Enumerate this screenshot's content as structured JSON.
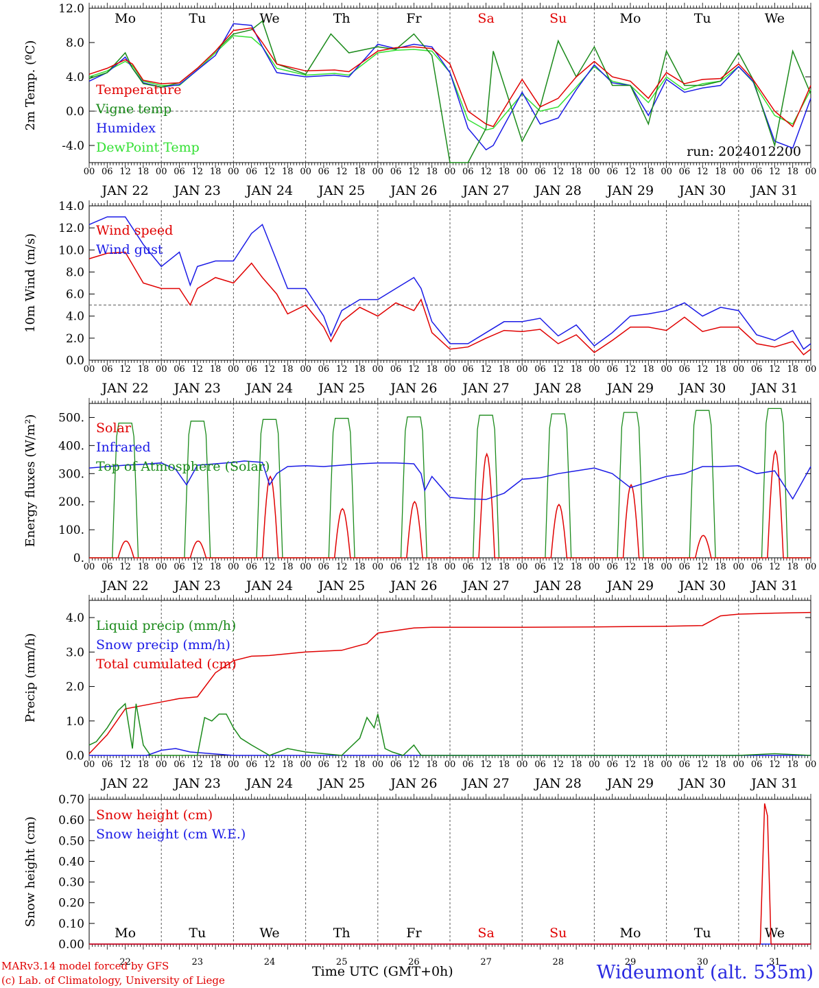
{
  "site_title": "Wideumont (alt. 535m)",
  "credits": [
    "MARv3.14 model forced by GFS",
    "(c) Lab. of Climatology, University of Liege"
  ],
  "colors": {
    "red": "#e00000",
    "green": "#1a8a1a",
    "blue": "#1a1ae6",
    "lightgreen": "#33e033",
    "black": "#000000"
  },
  "chart_data": [
    {
      "type": "line",
      "ylabel": "2m Temp. (ºC)",
      "ylim": [
        -6,
        12
      ],
      "yticks": [
        -4,
        0,
        4,
        8,
        12
      ],
      "ytick_labels": [
        "-4.0",
        "0.0",
        "4.0",
        "8.0",
        "12.0"
      ],
      "ref_line": 0,
      "annotation": "run: 2024012200",
      "day_names": [
        "Mo",
        "Tu",
        "We",
        "Th",
        "Fr",
        "Sa",
        "Su",
        "Mo",
        "Tu",
        "We"
      ],
      "weekend_days": [
        "Sa",
        "Su"
      ],
      "x_hour_labels": [
        "00",
        "06",
        "12",
        "18"
      ],
      "date_labels": [
        "JAN 22",
        "JAN 23",
        "JAN 24",
        "JAN 25",
        "JAN 26",
        "JAN 27",
        "JAN 28",
        "JAN 29",
        "JAN 30",
        "JAN 31"
      ],
      "xlim_days": [
        0,
        10
      ],
      "series": [
        {
          "name": "Temperature",
          "color": "#e00000",
          "x": [
            0,
            0.25,
            0.5,
            0.6,
            0.75,
            1,
            1.25,
            1.5,
            1.75,
            2,
            2.25,
            2.4,
            2.6,
            3,
            3.4,
            3.6,
            4,
            4.25,
            4.5,
            4.75,
            5,
            5.25,
            5.5,
            5.6,
            6,
            6.25,
            6.5,
            6.75,
            7,
            7.25,
            7.5,
            7.75,
            8,
            8.25,
            8.5,
            8.75,
            9,
            9.2,
            9.5,
            9.75,
            10
          ],
          "y": [
            4.3,
            5,
            6,
            5.5,
            3.6,
            3.2,
            3.3,
            5,
            7,
            9.4,
            9.7,
            8,
            5.5,
            4.7,
            4.8,
            4.6,
            7,
            7.4,
            7.5,
            7.3,
            5.5,
            0,
            -1.5,
            -1.8,
            3.7,
            0.5,
            1.5,
            4,
            5.8,
            4,
            3.5,
            1.5,
            4.5,
            3.2,
            3.7,
            3.8,
            5.5,
            3.7,
            0,
            -1.8,
            3
          ]
        },
        {
          "name": "Vigne temp",
          "color": "#1a8a1a",
          "x": [
            0,
            0.25,
            0.5,
            0.6,
            0.75,
            1,
            1.25,
            1.5,
            1.75,
            2,
            2.25,
            2.4,
            2.6,
            3,
            3.35,
            3.6,
            4,
            4.25,
            4.5,
            4.75,
            5,
            5.25,
            5.5,
            5.6,
            6,
            6.25,
            6.5,
            6.75,
            7,
            7.25,
            7.5,
            7.75,
            8,
            8.25,
            8.5,
            8.75,
            9,
            9.2,
            9.5,
            9.75,
            10
          ],
          "y": [
            3.8,
            4.5,
            6.8,
            5,
            3.2,
            2.8,
            3.3,
            5,
            7,
            9,
            9.5,
            10.5,
            5.5,
            4.3,
            9,
            6.8,
            7.5,
            7.2,
            9,
            6.5,
            -6,
            -6,
            -2,
            7,
            -3.5,
            0.5,
            8.2,
            4,
            7.5,
            3,
            3,
            -1.5,
            7,
            3,
            3,
            3.5,
            6.8,
            3.7,
            -4,
            7,
            2
          ]
        },
        {
          "name": "Humidex",
          "color": "#1a1ae6",
          "x": [
            0,
            0.25,
            0.5,
            0.6,
            0.75,
            1,
            1.25,
            1.5,
            1.75,
            2,
            2.25,
            2.4,
            2.6,
            3,
            3.4,
            3.6,
            4,
            4.25,
            4.5,
            4.75,
            5,
            5.25,
            5.5,
            5.6,
            6,
            6.25,
            6.5,
            6.75,
            7,
            7.25,
            7.5,
            7.75,
            8,
            8.25,
            8.5,
            8.75,
            9,
            9.2,
            9.5,
            9.75,
            10
          ],
          "y": [
            3.5,
            4.5,
            6.3,
            5,
            3.3,
            2.8,
            3.1,
            4.8,
            6.5,
            10.2,
            10,
            7.5,
            4.5,
            4,
            4.2,
            4,
            7.8,
            7.3,
            7.8,
            7.5,
            4.5,
            -2,
            -4.5,
            -4,
            2.2,
            -1.5,
            -0.8,
            2.5,
            5.4,
            3.3,
            3,
            -0.5,
            3.7,
            2.2,
            2.7,
            3,
            5.2,
            3.5,
            -3.5,
            -4.3,
            1.5
          ]
        },
        {
          "name": "DewPoint Temp",
          "color": "#33e033",
          "x": [
            0,
            0.25,
            0.5,
            0.6,
            0.75,
            1,
            1.25,
            1.5,
            1.75,
            2,
            2.25,
            2.4,
            2.6,
            3,
            3.4,
            3.6,
            4,
            4.25,
            4.5,
            4.75,
            5,
            5.25,
            5.5,
            5.6,
            6,
            6.25,
            6.5,
            6.75,
            7,
            7.25,
            7.5,
            7.75,
            8,
            8.25,
            8.5,
            8.75,
            9,
            9.2,
            9.5,
            9.75,
            10
          ],
          "y": [
            4,
            4.7,
            5.8,
            5.3,
            3.5,
            3,
            3,
            4.8,
            6.8,
            8.8,
            8.6,
            7.5,
            5,
            4.2,
            4.4,
            4.2,
            6.8,
            7.1,
            7.2,
            7,
            4.5,
            -1,
            -2.2,
            -2,
            2,
            0,
            0.5,
            2.8,
            5.2,
            3.5,
            3,
            1,
            4,
            2.5,
            3.2,
            3.5,
            5.2,
            3.4,
            -0.5,
            -1.5,
            2.5
          ]
        }
      ]
    },
    {
      "type": "line",
      "ylabel": "10m Wind (m/s)",
      "ylim": [
        0,
        14
      ],
      "yticks": [
        0,
        2,
        4,
        6,
        8,
        10,
        12,
        14
      ],
      "ytick_labels": [
        "0.0",
        "2.0",
        "4.0",
        "6.0",
        "8.0",
        "10.0",
        "12.0",
        "14.0"
      ],
      "ref_line": 5,
      "date_labels": [
        "JAN 22",
        "JAN 23",
        "JAN 24",
        "JAN 25",
        "JAN 26",
        "JAN 27",
        "JAN 28",
        "JAN 29",
        "JAN 30",
        "JAN 31"
      ],
      "x_hour_labels": [
        "00",
        "06",
        "12",
        "18"
      ],
      "xlim_days": [
        0,
        10
      ],
      "series": [
        {
          "name": "Wind speed",
          "color": "#e00000",
          "x": [
            0,
            0.25,
            0.5,
            0.75,
            1,
            1.25,
            1.4,
            1.5,
            1.75,
            2,
            2.25,
            2.4,
            2.6,
            2.75,
            3,
            3.25,
            3.35,
            3.5,
            3.75,
            4,
            4.25,
            4.5,
            4.6,
            4.75,
            5,
            5.25,
            5.5,
            5.75,
            6,
            6.25,
            6.5,
            6.75,
            7,
            7.25,
            7.5,
            7.75,
            8,
            8.25,
            8.5,
            8.75,
            9,
            9.25,
            9.5,
            9.75,
            9.9,
            10
          ],
          "y": [
            9.2,
            9.7,
            9.8,
            7,
            6.5,
            6.5,
            5,
            6.5,
            7.5,
            7,
            8.8,
            7.5,
            6,
            4.2,
            5,
            3,
            1.7,
            3.5,
            4.8,
            4,
            5.2,
            4.5,
            5.5,
            2.5,
            1,
            1.2,
            2,
            2.7,
            2.6,
            2.8,
            1.5,
            2.3,
            0.7,
            1.8,
            3,
            3,
            2.7,
            3.9,
            2.6,
            3,
            3,
            1.5,
            1.2,
            1.7,
            0.5,
            1
          ]
        },
        {
          "name": "Wind gust",
          "color": "#1a1ae6",
          "x": [
            0,
            0.25,
            0.5,
            0.75,
            1,
            1.25,
            1.4,
            1.5,
            1.75,
            2,
            2.25,
            2.4,
            2.6,
            2.75,
            3,
            3.25,
            3.35,
            3.5,
            3.75,
            4,
            4.25,
            4.5,
            4.6,
            4.75,
            5,
            5.25,
            5.5,
            5.75,
            6,
            6.25,
            6.5,
            6.75,
            7,
            7.25,
            7.5,
            7.75,
            8,
            8.25,
            8.5,
            8.75,
            9,
            9.25,
            9.5,
            9.75,
            9.9,
            10
          ],
          "y": [
            12.3,
            13,
            13,
            10.5,
            8.5,
            9.8,
            6.8,
            8.5,
            9,
            9,
            11.5,
            12.3,
            9,
            6.5,
            6.5,
            4,
            2.2,
            4.5,
            5.5,
            5.5,
            6.5,
            7.5,
            6.5,
            3.5,
            1.5,
            1.5,
            2.5,
            3.5,
            3.5,
            3.8,
            2.2,
            3.2,
            1.3,
            2.5,
            4,
            4.2,
            4.5,
            5.2,
            4,
            4.8,
            4.5,
            2.3,
            1.8,
            2.7,
            1,
            1.5
          ]
        }
      ]
    },
    {
      "type": "line",
      "ylabel": "Energy fluxes (W/m²)",
      "ylim": [
        0,
        550
      ],
      "yticks": [
        0,
        100,
        200,
        300,
        400,
        500
      ],
      "ytick_labels": [
        "0.",
        "100.",
        "200.",
        "300.",
        "400.",
        "500."
      ],
      "date_labels": [
        "JAN 22",
        "JAN 23",
        "JAN 24",
        "JAN 25",
        "JAN 26",
        "JAN 27",
        "JAN 28",
        "JAN 29",
        "JAN 30",
        "JAN 31"
      ],
      "x_hour_labels": [
        "00",
        "06",
        "12",
        "18"
      ],
      "xlim_days": [
        0,
        10
      ],
      "solar_peaks": [
        60,
        60,
        290,
        175,
        200,
        370,
        190,
        260,
        80,
        380
      ],
      "toa_peaks": [
        480,
        487,
        493,
        497,
        502,
        508,
        513,
        518,
        525,
        532
      ],
      "infrared": {
        "x": [
          0,
          0.25,
          0.5,
          0.75,
          1,
          1.2,
          1.35,
          1.5,
          1.75,
          2,
          2.15,
          2.4,
          2.5,
          2.6,
          2.75,
          3,
          3.25,
          3.5,
          3.75,
          4,
          4.25,
          4.5,
          4.6,
          4.65,
          4.75,
          5,
          5.25,
          5.5,
          5.75,
          6,
          6.25,
          6.5,
          6.75,
          7,
          7.25,
          7.5,
          7.75,
          8,
          8.25,
          8.5,
          8.75,
          9,
          9.25,
          9.5,
          9.75,
          10
        ],
        "y": [
          320,
          325,
          330,
          333,
          338,
          315,
          260,
          330,
          335,
          340,
          345,
          340,
          260,
          300,
          325,
          328,
          325,
          330,
          335,
          338,
          338,
          335,
          300,
          240,
          290,
          215,
          210,
          208,
          230,
          280,
          285,
          300,
          310,
          320,
          300,
          250,
          270,
          290,
          300,
          325,
          325,
          328,
          300,
          310,
          210,
          325
        ]
      },
      "series": [
        {
          "name": "Solar",
          "color": "#e00000"
        },
        {
          "name": "Infrared",
          "color": "#1a1ae6"
        },
        {
          "name": "Top of Atmosphere (Solar)",
          "color": "#1a8a1a"
        }
      ]
    },
    {
      "type": "line",
      "ylabel": "Precip (mm/h)",
      "ylim": [
        0,
        4.5
      ],
      "yticks": [
        0,
        1,
        2,
        3,
        4
      ],
      "ytick_labels": [
        "0.0",
        "1.0",
        "2.0",
        "3.0",
        "4.0"
      ],
      "date_labels": [
        "JAN 22",
        "JAN 23",
        "JAN 24",
        "JAN 25",
        "JAN 26",
        "JAN 27",
        "JAN 28",
        "JAN 29",
        "JAN 30",
        "JAN 31"
      ],
      "x_hour_labels": [
        "00",
        "06",
        "12",
        "18"
      ],
      "xlim_days": [
        0,
        10
      ],
      "series": [
        {
          "name": "Liquid precip (mm/h)",
          "color": "#1a8a1a",
          "x": [
            0,
            0.1,
            0.25,
            0.4,
            0.5,
            0.6,
            0.65,
            0.75,
            0.85,
            1,
            1.25,
            1.5,
            1.6,
            1.7,
            1.8,
            1.9,
            2,
            2.1,
            2.25,
            2.5,
            2.75,
            3,
            3.5,
            3.75,
            3.85,
            3.95,
            4,
            4.1,
            4.2,
            4.35,
            4.5,
            4.6,
            5,
            6,
            7,
            8,
            8.5,
            9,
            9.5,
            10
          ],
          "y": [
            0.3,
            0.4,
            0.8,
            1.3,
            1.5,
            0.2,
            1.5,
            0.3,
            0,
            0,
            0,
            0,
            1.1,
            1,
            1.2,
            1.2,
            0.8,
            0.5,
            0.3,
            0,
            0.2,
            0.1,
            0,
            0.5,
            1.1,
            0.8,
            1.2,
            0.2,
            0.1,
            0,
            0.3,
            0,
            0,
            0,
            0,
            0,
            0,
            0,
            0.05,
            0
          ]
        },
        {
          "name": "Snow precip (mm/h)",
          "color": "#1a1ae6",
          "x": [
            0,
            0.8,
            1,
            1.2,
            1.4,
            1.7,
            2,
            10
          ],
          "y": [
            0,
            0,
            0.15,
            0.2,
            0.1,
            0.05,
            0,
            0
          ]
        },
        {
          "name": "Total cumulated (cm)",
          "color": "#e00000",
          "x": [
            0,
            0.25,
            0.5,
            0.75,
            1,
            1.25,
            1.5,
            1.75,
            2,
            2.25,
            2.5,
            3,
            3.5,
            3.85,
            4,
            4.5,
            4.75,
            5,
            6,
            7,
            8,
            8.5,
            8.75,
            9,
            9.5,
            10
          ],
          "y": [
            0.05,
            0.6,
            1.35,
            1.45,
            1.55,
            1.65,
            1.7,
            2.4,
            2.75,
            2.88,
            2.9,
            3.0,
            3.05,
            3.25,
            3.55,
            3.7,
            3.72,
            3.72,
            3.72,
            3.73,
            3.75,
            3.77,
            4.05,
            4.1,
            4.13,
            4.15
          ]
        }
      ]
    },
    {
      "type": "line",
      "ylabel": "Snow height (cm)",
      "ylim": [
        0,
        0.7
      ],
      "yticks": [
        0,
        0.1,
        0.2,
        0.3,
        0.4,
        0.5,
        0.6,
        0.7
      ],
      "ytick_labels": [
        "0.00",
        "0.10",
        "0.20",
        "0.30",
        "0.40",
        "0.50",
        "0.60",
        "0.70"
      ],
      "xlabel": "Time UTC (GMT+0h)",
      "day_names": [
        "Mo",
        "Tu",
        "We",
        "Th",
        "Fr",
        "Sa",
        "Su",
        "Mo",
        "Tu",
        "We"
      ],
      "day_numbers": [
        "22",
        "23",
        "24",
        "25",
        "26",
        "27",
        "28",
        "29",
        "30",
        "31"
      ],
      "xlim_days": [
        0,
        10
      ],
      "series": [
        {
          "name": "Snow height (cm)",
          "color": "#e00000",
          "x": [
            0,
            9.3,
            9.36,
            9.4,
            9.45,
            10
          ],
          "y": [
            0,
            0,
            0.68,
            0.62,
            0,
            0
          ]
        },
        {
          "name": "Snow height (cm W.E.)",
          "color": "#1a1ae6",
          "x": [
            0,
            10
          ],
          "y": [
            0,
            0
          ]
        }
      ]
    }
  ]
}
